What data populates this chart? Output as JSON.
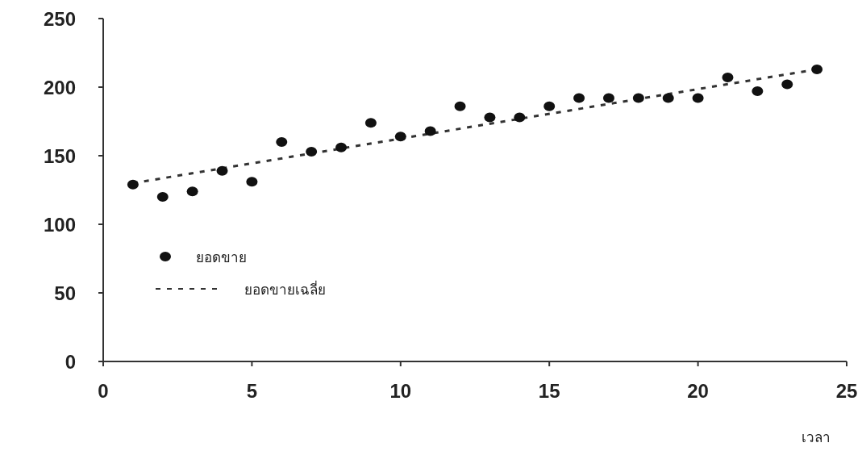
{
  "chart_data": {
    "type": "scatter",
    "xlabel": "เวลา",
    "xlim": [
      0,
      25
    ],
    "xticks": [
      0,
      5,
      10,
      15,
      20,
      25
    ],
    "ylim": [
      0,
      250
    ],
    "yticks": [
      0,
      50,
      100,
      150,
      200,
      250
    ],
    "grid": false,
    "legend": "left",
    "series": [
      {
        "name": "ยอดขาย",
        "marker": "circle",
        "color": "#111111",
        "x": [
          1,
          2,
          3,
          4,
          5,
          6,
          7,
          8,
          9,
          10,
          11,
          12,
          13,
          14,
          15,
          16,
          17,
          18,
          19,
          20,
          21,
          22,
          23,
          24
        ],
        "values": [
          129,
          120,
          124,
          139,
          131,
          160,
          153,
          156,
          174,
          164,
          168,
          186,
          178,
          178,
          186,
          192,
          192,
          192,
          192,
          192,
          207,
          197,
          202,
          213
        ]
      },
      {
        "name": "ยอดขายเฉลี่ย",
        "type": "line",
        "marker": "none",
        "line_style": "dashed",
        "color": "#333333",
        "x": [
          1,
          24
        ],
        "values": [
          130,
          213
        ]
      }
    ]
  }
}
